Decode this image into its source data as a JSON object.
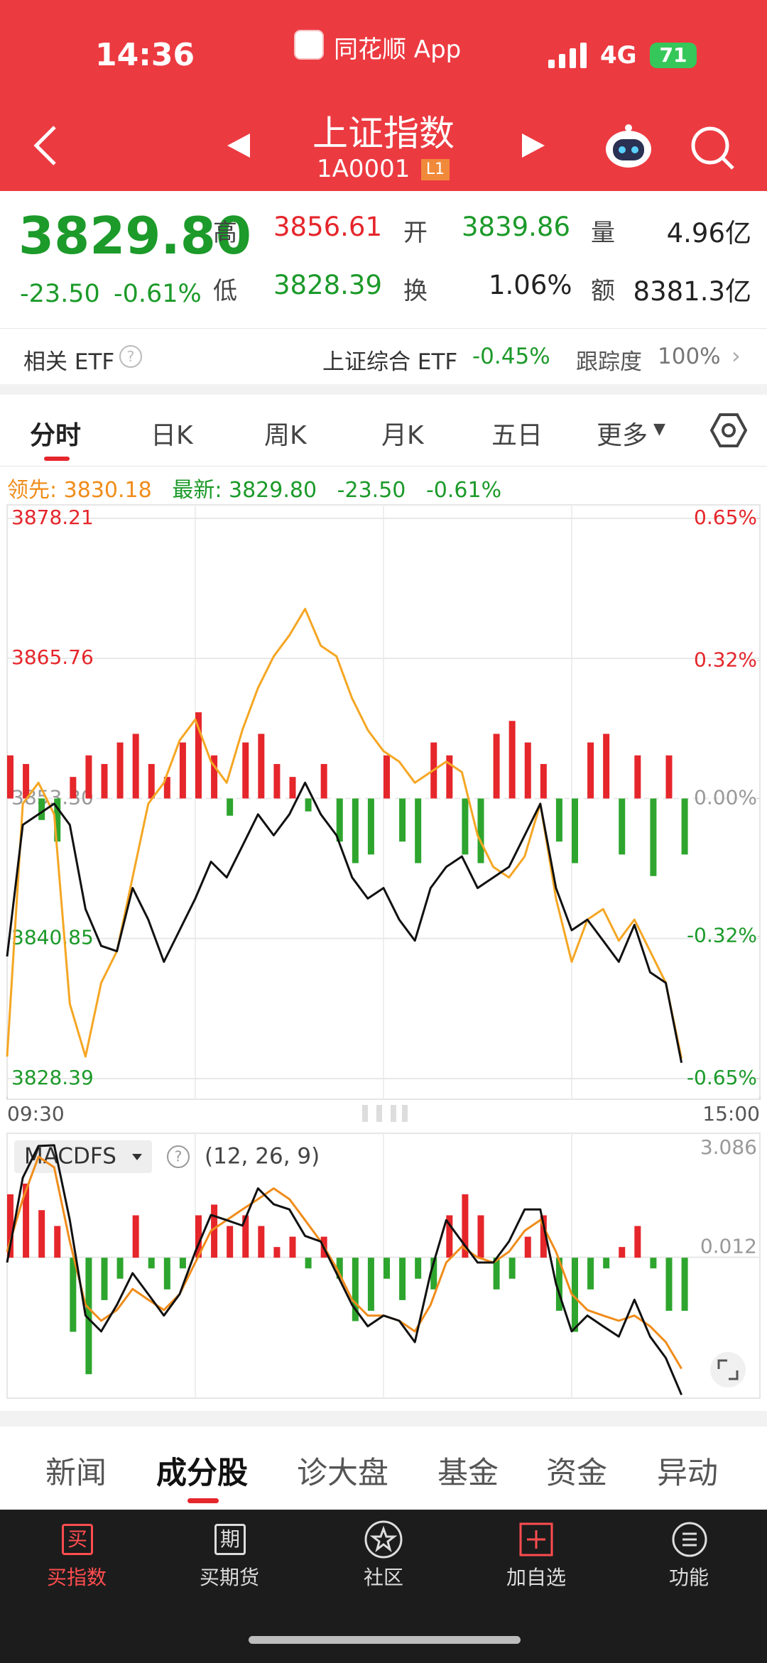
{
  "status": {
    "time": "14:36",
    "app": "同花顺 App",
    "network": "4G",
    "battery": "71"
  },
  "header": {
    "title": "上证指数",
    "code": "1A0001",
    "badge": "L1"
  },
  "quote": {
    "price": "3829.80",
    "change": "-23.50",
    "pct": "-0.61%",
    "stats": [
      {
        "label": "高",
        "value": "3856.61"
      },
      {
        "label": "开",
        "value": "3839.86"
      },
      {
        "label": "量",
        "value": "4.96亿"
      },
      {
        "label": "低",
        "value": "3828.39"
      },
      {
        "label": "换",
        "value": "1.06%"
      },
      {
        "label": "额",
        "value": "8381.3亿"
      }
    ]
  },
  "etf": {
    "label": "相关 ETF",
    "name": "上证综合 ETF",
    "change": "-0.45%",
    "track_label": "跟踪度",
    "track": "100%"
  },
  "tabs": [
    "分时",
    "日K",
    "周K",
    "月K",
    "五日",
    "更多"
  ],
  "info": {
    "lead_label": "领先:",
    "lead": "3830.18",
    "latest_label": "最新:",
    "latest": "3829.80",
    "change": "-23.50",
    "pct": "-0.61%"
  },
  "intraday": {
    "xlim": [
      0,
      240
    ],
    "xticks": [
      {
        "value": 0,
        "label": "09:30"
      },
      {
        "value": 240,
        "label": "15:00"
      }
    ],
    "x": [
      0,
      5,
      10,
      15,
      20,
      25,
      30,
      35,
      40,
      45,
      50,
      55,
      60,
      65,
      70,
      75,
      80,
      85,
      90,
      95,
      100,
      105,
      110,
      115,
      120,
      125,
      130,
      135,
      140,
      145,
      150,
      155,
      160,
      165,
      170,
      175,
      180,
      185,
      190,
      195,
      200,
      205,
      210,
      215
    ],
    "ylim": [
      3828.39,
      3878.21
    ],
    "yticks": [
      3878.21,
      3865.76,
      {
        "value": 3853.3,
        "label": "3853.30"
      },
      3840.85,
      3828.39
    ],
    "y2lim": [
      -0.65,
      0.65
    ],
    "y2ticks": [
      {
        "value": 0.65,
        "label": "0.65%"
      },
      {
        "value": 0.32,
        "label": "0.32%"
      },
      {
        "value": 0,
        "label": "0.00%"
      },
      {
        "value": -0.32,
        "label": "-0.32%"
      },
      {
        "value": -0.65,
        "label": "-0.65%"
      }
    ],
    "series": [
      {
        "color": "#111111",
        "values": [
          3839.25,
          3850.96,
          3851.89,
          3852.83,
          3850.96,
          3843.47,
          3840.19,
          3839.72,
          3845.34,
          3842.53,
          3838.78,
          3841.59,
          3844.4,
          3847.68,
          3846.28,
          3849.08,
          3851.89,
          3850.02,
          3851.89,
          3854.7,
          3851.89,
          3850.02,
          3846.28,
          3844.4,
          3845.34,
          3842.53,
          3840.66,
          3845.34,
          3847.21,
          3848.15,
          3845.34,
          3846.28,
          3847.21,
          3850.02,
          3852.83,
          3845.34,
          3841.59,
          3842.53,
          3840.66,
          3838.78,
          3842.06,
          3837.85,
          3836.91,
          3829.8
        ]
      },
      {
        "color": "#f5a623",
        "values": [
          3830.35,
          3852.83,
          3854.7,
          3851.89,
          3835.04,
          3830.35,
          3836.91,
          3839.72,
          3846.28,
          3852.83,
          3854.7,
          3858.45,
          3860.32,
          3856.58,
          3854.7,
          3859.39,
          3863.13,
          3865.94,
          3867.81,
          3870.16,
          3866.88,
          3865.94,
          3862.2,
          3859.39,
          3857.51,
          3856.58,
          3854.7,
          3855.64,
          3856.58,
          3855.64,
          3850.02,
          3847.21,
          3846.28,
          3848.15,
          3852.83,
          3844.4,
          3838.78,
          3842.53,
          3843.47,
          3840.66,
          3842.53,
          3839.72,
          3836.91,
          3830.18
        ]
      }
    ],
    "bars": {
      "up_color": "#e5262b",
      "down_color": "#2ea52e",
      "values": [
        0.1,
        0.08,
        -0.05,
        -0.1,
        0.05,
        0.1,
        0.08,
        0.13,
        0.15,
        0.08,
        0.05,
        0.13,
        0.2,
        0.1,
        -0.04,
        0.13,
        0.15,
        0.08,
        0.05,
        -0.03,
        0.08,
        -0.1,
        -0.15,
        -0.13,
        0.1,
        -0.1,
        -0.15,
        0.13,
        0.1,
        -0.13,
        -0.15,
        0.15,
        0.18,
        0.13,
        0.08,
        -0.1,
        -0.15,
        0.13,
        0.15,
        -0.13,
        0.1,
        -0.18,
        0.1,
        -0.13
      ]
    }
  },
  "macd": {
    "name": "MACDFS",
    "params": "(12, 26, 9)",
    "ylim": [
      -3.81,
      3.086
    ],
    "yticks": [
      3.086,
      0.012
    ],
    "series": [
      {
        "color": "#111111",
        "values": [
          -0.13,
          2.17,
          3.03,
          3.05,
          1.02,
          -1.57,
          -2.0,
          -1.28,
          -0.42,
          -0.99,
          -1.57,
          -0.99,
          0.16,
          1.16,
          1.02,
          0.87,
          1.88,
          1.45,
          1.31,
          0.59,
          0.44,
          -0.42,
          -1.28,
          -1.86,
          -1.57,
          -1.71,
          -2.29,
          -0.42,
          1.02,
          0.44,
          -0.13,
          -0.13,
          0.44,
          1.31,
          1.31,
          -0.71,
          -2.0,
          -1.57,
          -1.86,
          -2.14,
          -1.14,
          -2.14,
          -2.72,
          -3.72
        ]
      },
      {
        "color": "#f08c1a",
        "values": [
          0.16,
          1.59,
          2.74,
          2.45,
          0.44,
          -1.28,
          -1.71,
          -1.42,
          -0.85,
          -1.14,
          -1.42,
          -0.99,
          -0.13,
          0.73,
          1.02,
          1.31,
          1.59,
          1.88,
          1.59,
          1.02,
          0.44,
          -0.28,
          -1.14,
          -1.57,
          -1.57,
          -1.71,
          -2.0,
          -1.28,
          -0.13,
          0.3,
          0.01,
          -0.13,
          0.16,
          0.73,
          1.02,
          0.16,
          -0.99,
          -1.42,
          -1.57,
          -1.71,
          -1.57,
          -1.86,
          -2.29,
          -3.01
        ]
      }
    ],
    "hist": {
      "up_color": "#e5262b",
      "down_color": "#2ea52e",
      "values": [
        1.72,
        2.01,
        1.29,
        0.86,
        -2.01,
        -3.16,
        -1.15,
        -0.57,
        1.15,
        -0.29,
        -0.86,
        -0.29,
        1.15,
        1.44,
        0.86,
        1.15,
        0.86,
        0.29,
        0.57,
        -0.29,
        0.57,
        -0.57,
        -1.72,
        -1.44,
        -0.57,
        -1.15,
        -0.57,
        -0.86,
        1.15,
        1.72,
        1.15,
        -0.86,
        -0.57,
        0.57,
        1.15,
        -1.44,
        -2.01,
        -0.86,
        -0.29,
        0.29,
        0.86,
        -0.29,
        -1.44,
        -1.44
      ]
    }
  },
  "bottom_tabs": [
    "新闻",
    "成分股",
    "诊大盘",
    "基金",
    "资金",
    "异动"
  ],
  "nav": [
    {
      "icon": "买",
      "label": "买指数"
    },
    {
      "icon": "期",
      "label": "买期货"
    },
    {
      "label": "社区"
    },
    {
      "label": "加自选"
    },
    {
      "label": "功能"
    }
  ]
}
